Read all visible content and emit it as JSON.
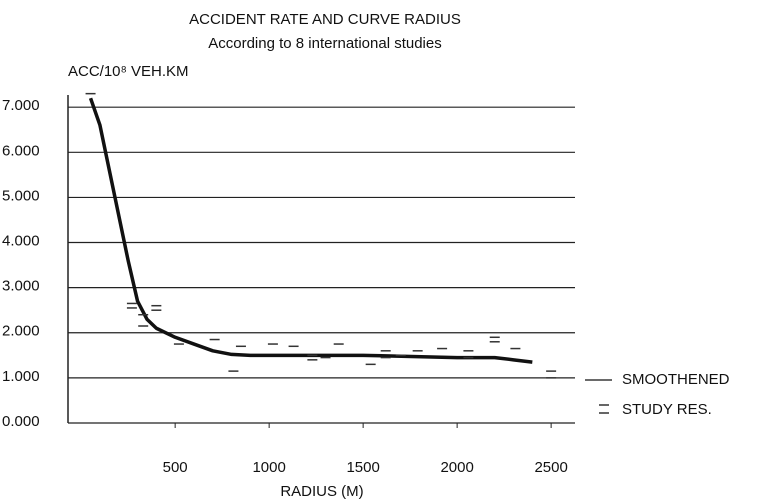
{
  "chart_data": {
    "type": "line",
    "title": "ACCIDENT RATE AND CURVE RADIUS",
    "subtitle": "According to 8 international studies",
    "y_label": "ACC/10⁸ VEH.KM",
    "x_label": "RADIUS (M)",
    "xlim": [
      -70,
      2627
    ],
    "xticks": [
      500,
      1000,
      1500,
      2000,
      2500
    ],
    "ylim": [
      0,
      7.27
    ],
    "yticks": [
      {
        "value": 0,
        "label": "0.000"
      },
      {
        "value": 1,
        "label": "1.000"
      },
      {
        "value": 2,
        "label": "2.000"
      },
      {
        "value": 3,
        "label": "3.000"
      },
      {
        "value": 4,
        "label": "4.000"
      },
      {
        "value": 5,
        "label": "5.000"
      },
      {
        "value": 6,
        "label": "6.000"
      },
      {
        "value": 7,
        "label": "7.000"
      }
    ],
    "grid": true,
    "legend": "right",
    "series": [
      {
        "name": "SMOOTHENED",
        "type": "line",
        "color": "#111111",
        "x": [
          50,
          100,
          150,
          200,
          250,
          300,
          350,
          400,
          500,
          600,
          700,
          800,
          900,
          1000,
          1500,
          2000,
          2200,
          2300,
          2400
        ],
        "values": [
          7.2,
          6.6,
          5.6,
          4.6,
          3.6,
          2.7,
          2.3,
          2.1,
          1.9,
          1.75,
          1.6,
          1.52,
          1.5,
          1.5,
          1.5,
          1.45,
          1.45,
          1.4,
          1.35
        ]
      },
      {
        "name": "STUDY RES.",
        "type": "scatter",
        "color": "#333333",
        "x": [
          50,
          270,
          270,
          330,
          330,
          400,
          400,
          520,
          710,
          810,
          850,
          1020,
          1130,
          1230,
          1230,
          1300,
          1370,
          1540,
          1620,
          1620,
          1700,
          1790,
          1920,
          2060,
          2060,
          2200,
          2200,
          2310,
          2500,
          2500
        ],
        "values": [
          7.3,
          2.65,
          2.55,
          2.4,
          2.15,
          2.6,
          2.5,
          1.75,
          1.85,
          1.15,
          1.7,
          1.75,
          1.7,
          1.5,
          1.4,
          1.45,
          1.75,
          1.3,
          1.6,
          1.45,
          1.5,
          1.6,
          1.65,
          1.45,
          1.6,
          1.9,
          1.8,
          1.65,
          1.15,
          1.0
        ]
      }
    ]
  }
}
